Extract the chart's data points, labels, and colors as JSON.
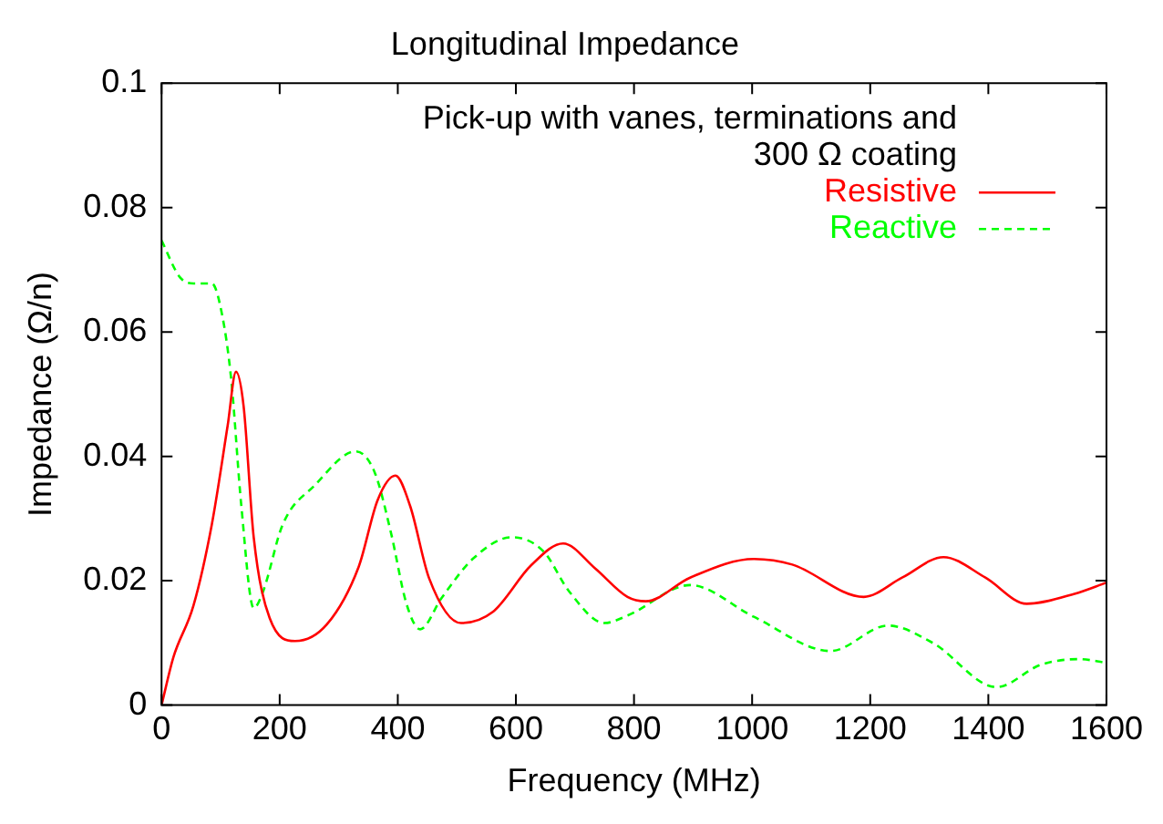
{
  "chart_data": {
    "type": "line",
    "title": "Longitudinal Impedance",
    "xlabel": "Frequency (MHz)",
    "ylabel": "Impedance (Ω/n)",
    "legend_title": "Pick-up with vanes, terminations and 300 Ω coating",
    "legend": "top right",
    "grid": false,
    "marker": "none",
    "xlim": [
      0,
      1600
    ],
    "xticks": [
      0,
      200,
      400,
      600,
      800,
      1000,
      1200,
      1400,
      1600
    ],
    "ylim": [
      0,
      0.1
    ],
    "yticks": [
      0,
      0.02,
      0.04,
      0.06,
      0.08,
      0.1
    ],
    "series": [
      {
        "name": "Resistive",
        "color": "#ff0000",
        "line_style": "solid",
        "x": [
          0,
          20,
          54,
          85,
          112,
          126,
          139,
          156,
          183,
          226,
          280,
          334,
          366,
          396,
          421,
          453,
          507,
          561,
          626,
          680,
          734,
          789,
          820,
          895,
          1003,
          1068,
          1189,
          1254,
          1324,
          1395,
          1465,
          1546,
          1600
        ],
        "values": [
          0,
          0.0077,
          0.016,
          0.029,
          0.045,
          0.0536,
          0.048,
          0.027,
          0.014,
          0.0103,
          0.013,
          0.0223,
          0.033,
          0.0369,
          0.032,
          0.0204,
          0.0132,
          0.015,
          0.0225,
          0.026,
          0.022,
          0.0174,
          0.0167,
          0.0205,
          0.0235,
          0.0226,
          0.0174,
          0.0205,
          0.0238,
          0.0205,
          0.0163,
          0.0179,
          0.0197
        ]
      },
      {
        "name": "Reactive",
        "color": "#00ff00",
        "line_style": "dashed",
        "x": [
          0,
          31,
          54,
          85,
          102,
          118,
          135,
          156,
          172,
          205,
          259,
          329,
          361,
          388,
          415,
          438,
          474,
          528,
          593,
          647,
          690,
          750,
          789,
          895,
          1003,
          1133,
          1230,
          1306,
          1414,
          1489,
          1554,
          1600
        ],
        "values": [
          0.0747,
          0.0688,
          0.0678,
          0.0678,
          0.063,
          0.0523,
          0.0321,
          0.0156,
          0.0183,
          0.029,
          0.0353,
          0.0408,
          0.0374,
          0.0279,
          0.0162,
          0.0122,
          0.0172,
          0.0236,
          0.027,
          0.0247,
          0.0183,
          0.0132,
          0.0144,
          0.0193,
          0.0142,
          0.0087,
          0.0128,
          0.01,
          0.0029,
          0.0065,
          0.0074,
          0.0068
        ]
      }
    ]
  }
}
